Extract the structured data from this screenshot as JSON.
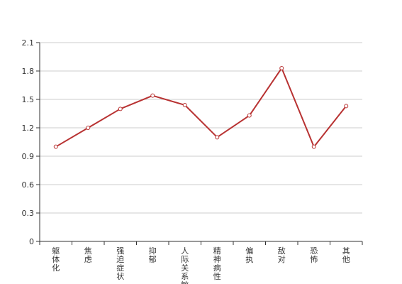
{
  "chart_data": {
    "type": "line",
    "title": "",
    "xlabel": "",
    "ylabel": "",
    "categories": [
      "躯体化",
      "焦虑",
      "强迫症状",
      "抑郁",
      "人际关系敏感",
      "精神病性",
      "偏执",
      "敌对",
      "恐怖",
      "其他"
    ],
    "series": [
      {
        "values": [
          1.0,
          1.2,
          1.4,
          1.54,
          1.44,
          1.1,
          1.33,
          1.83,
          1.0,
          1.43
        ]
      }
    ],
    "ylim": [
      0,
      2.1
    ],
    "yticks": [
      "0",
      "0.3",
      "0.6",
      "0.9",
      "1.2",
      "1.5",
      "1.8",
      "2.1"
    ],
    "grid": true,
    "colors": {
      "line": "#b83232",
      "grid": "#cccccc",
      "axis": "#333333",
      "marker_fill": "#ffffff"
    }
  }
}
